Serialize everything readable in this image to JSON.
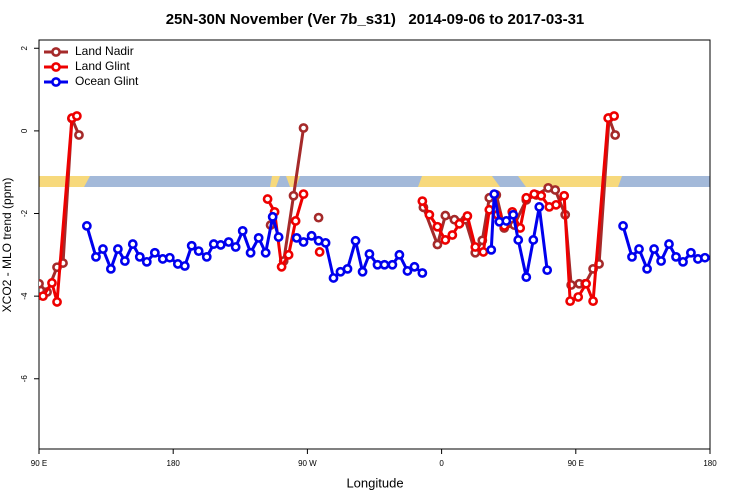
{
  "chart_data": {
    "type": "line",
    "title": "25N-30N November (Ver 7b_s31)   2014-09-06 to 2017-03-31",
    "xlabel": "Longitude",
    "ylabel": "XCO2 - MLO trend (ppm)",
    "xlim": [
      90,
      540
    ],
    "xticks": [
      {
        "value": 90,
        "label": "90 E"
      },
      {
        "value": 180,
        "label": "180"
      },
      {
        "value": 270,
        "label": "90 W"
      },
      {
        "value": 360,
        "label": "0"
      },
      {
        "value": 450,
        "label": "90 E"
      },
      {
        "value": 540,
        "label": "180"
      }
    ],
    "ylim": [
      -7.7,
      2.2
    ],
    "yticks": [
      2,
      0,
      -2,
      -4,
      -6
    ],
    "legend": "topleft",
    "series": [
      {
        "name": "Land Nadir",
        "color": "#a52a2a",
        "x": [
          90.0,
          95.4,
          102.1,
          106.1,
          112.1,
          116.8,
          null,
          245.3,
          null,
          254.1,
          260.7,
          267.4,
          null,
          277.5,
          null,
          347.8,
          357.2,
          362.5,
          368.6,
          375.9,
          382.6,
          387.3,
          392.0,
          396.7,
          402.0,
          408.7,
          416.8,
          423.5,
          431.5,
          436.2,
          442.9,
          446.9,
          452.3,
          456.3,
          461.6,
          465.6,
          472.3,
          476.4
        ],
        "values": [
          -3.7,
          -3.9,
          -3.3,
          -3.2,
          0.3,
          -0.1,
          null,
          -2.28,
          null,
          -3.15,
          -1.57,
          0.07,
          null,
          -2.1,
          null,
          -1.85,
          -2.75,
          -2.05,
          -2.15,
          -2.15,
          -2.95,
          -2.65,
          -1.62,
          -1.55,
          -2.35,
          -2.28,
          -1.67,
          -1.55,
          -1.38,
          -1.43,
          -2.03,
          -3.73,
          -3.7,
          -3.7,
          -3.34,
          -3.22,
          0.31,
          -0.1
        ]
      },
      {
        "name": "Land Glint",
        "color": "#ee0000",
        "x": [
          92.7,
          98.7,
          102.1,
          112.1,
          115.4,
          null,
          243.3,
          248.0,
          252.7,
          257.4,
          262.1,
          267.4,
          null,
          278.2,
          null,
          347.1,
          351.8,
          357.2,
          362.5,
          367.2,
          371.9,
          377.3,
          382.6,
          388.0,
          392.0,
          397.4,
          402.1,
          407.4,
          412.7,
          416.8,
          422.1,
          426.8,
          432.2,
          436.8,
          442.2,
          446.2,
          451.6,
          456.9,
          461.6,
          471.7,
          475.7
        ],
        "values": [
          -4.0,
          -3.68,
          -4.14,
          0.31,
          0.36,
          null,
          -1.65,
          -1.96,
          -3.29,
          -3.0,
          -2.18,
          -1.53,
          null,
          -2.93,
          null,
          -1.7,
          -2.03,
          -2.32,
          -2.64,
          -2.52,
          -2.25,
          -2.06,
          -2.81,
          -2.93,
          -1.91,
          -2.03,
          -2.3,
          -1.96,
          -2.35,
          -1.62,
          -1.53,
          -1.57,
          -1.84,
          -1.79,
          -1.57,
          -4.12,
          -4.02,
          -3.7,
          -4.12,
          0.31,
          0.36
        ]
      },
      {
        "name": "Ocean Glint",
        "color": "#0000ee",
        "x": [
          122.1,
          128.2,
          132.9,
          138.2,
          142.9,
          147.6,
          152.9,
          157.6,
          162.3,
          167.7,
          173.0,
          177.7,
          183.1,
          187.8,
          192.4,
          197.1,
          202.5,
          207.2,
          211.9,
          217.2,
          221.9,
          226.6,
          231.9,
          237.3,
          242.0,
          246.7,
          250.7,
          null,
          262.8,
          267.4,
          272.8,
          277.5,
          282.2,
          287.5,
          292.2,
          296.9,
          302.3,
          307.0,
          311.6,
          317.0,
          321.7,
          327.0,
          331.7,
          337.1,
          341.8,
          347.1,
          null,
          393.3,
          395.3,
          398.7,
          403.4,
          408.0,
          411.4,
          416.8,
          421.5,
          425.5,
          430.8,
          null,
          481.7,
          487.7,
          492.4,
          497.8,
          502.5,
          507.2,
          512.5,
          517.2,
          521.9,
          527.2,
          531.9,
          536.6
        ],
        "values": [
          -2.3,
          -3.05,
          -2.86,
          -3.34,
          -2.86,
          -3.15,
          -2.74,
          -3.05,
          -3.17,
          -2.95,
          -3.1,
          -3.07,
          -3.22,
          -3.27,
          -2.78,
          -2.91,
          -3.05,
          -2.74,
          -2.76,
          -2.69,
          -2.81,
          -2.42,
          -2.95,
          -2.59,
          -2.95,
          -2.08,
          -2.57,
          null,
          -2.59,
          -2.69,
          -2.54,
          -2.66,
          -2.71,
          -3.56,
          -3.41,
          -3.34,
          -2.66,
          -3.41,
          -2.98,
          -3.24,
          -3.24,
          -3.24,
          -3.0,
          -3.39,
          -3.29,
          -3.44,
          null,
          -2.88,
          -1.53,
          -2.2,
          -2.18,
          -2.03,
          -2.64,
          -3.54,
          -2.64,
          -1.84,
          -3.37,
          null,
          -2.3,
          -3.05,
          -2.86,
          -3.34,
          -2.86,
          -3.15,
          -2.74,
          -3.05,
          -3.17,
          -2.95,
          -3.1,
          -3.07
        ]
      }
    ]
  }
}
